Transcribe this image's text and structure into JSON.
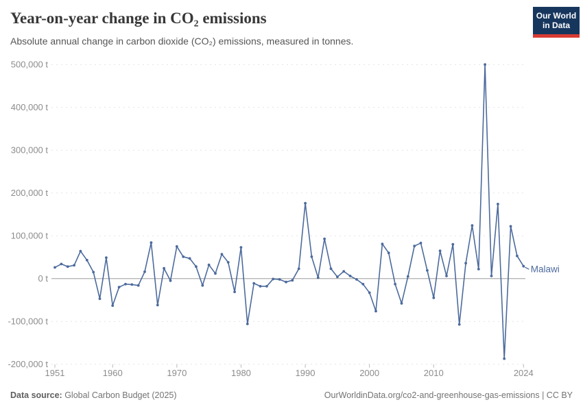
{
  "header": {
    "title": "Year-on-year change in CO₂ emissions",
    "subtitle": "Absolute annual change in carbon dioxide (CO₂) emissions, measured in tonnes."
  },
  "logo": {
    "line1": "Our World",
    "line2": "in Data"
  },
  "chart_data": {
    "type": "line",
    "title": "Year-on-year change in CO₂ emissions",
    "xlabel": "",
    "ylabel": "",
    "unit": "t",
    "grid": true,
    "legend_position": "end-of-line",
    "xlim": [
      1951,
      2024
    ],
    "ylim": [
      -200000,
      500000
    ],
    "x_ticks": [
      1951,
      1960,
      1970,
      1980,
      1990,
      2000,
      2010,
      2024
    ],
    "y_ticks": [
      500000,
      400000,
      300000,
      200000,
      100000,
      0,
      -100000,
      -200000
    ],
    "y_tick_labels": [
      "500,000 t",
      "400,000 t",
      "300,000 t",
      "200,000 t",
      "100,000 t",
      "0 t",
      "-100,000 t",
      "-200,000 t"
    ],
    "series": [
      {
        "name": "Malawi",
        "color": "#4C6A9C",
        "years": [
          1951,
          1952,
          1953,
          1954,
          1955,
          1956,
          1957,
          1958,
          1959,
          1960,
          1961,
          1962,
          1963,
          1964,
          1965,
          1966,
          1967,
          1968,
          1969,
          1970,
          1971,
          1972,
          1973,
          1974,
          1975,
          1976,
          1977,
          1978,
          1979,
          1980,
          1981,
          1982,
          1983,
          1984,
          1985,
          1986,
          1987,
          1988,
          1989,
          1990,
          1991,
          1992,
          1993,
          1994,
          1995,
          1996,
          1997,
          1998,
          1999,
          2000,
          2001,
          2002,
          2003,
          2004,
          2005,
          2006,
          2007,
          2008,
          2009,
          2010,
          2011,
          2012,
          2013,
          2014,
          2015,
          2016,
          2017,
          2018,
          2019,
          2020,
          2021,
          2022,
          2023,
          2024
        ],
        "values": [
          26000,
          34000,
          28000,
          31000,
          64000,
          43000,
          15000,
          -47000,
          49000,
          -63000,
          -20000,
          -13000,
          -14000,
          -16000,
          16000,
          84000,
          -62000,
          24000,
          -5000,
          75000,
          51000,
          47000,
          28000,
          -16000,
          32000,
          12000,
          57000,
          38000,
          -31000,
          73000,
          -106000,
          -11000,
          -18000,
          -18000,
          -1000,
          -2000,
          -8000,
          -4000,
          23000,
          176000,
          51000,
          2000,
          93000,
          23000,
          4000,
          17000,
          6000,
          -2000,
          -13000,
          -33000,
          -76000,
          81000,
          60000,
          -13000,
          -58000,
          5000,
          76000,
          83000,
          19000,
          -45000,
          65000,
          6000,
          80000,
          -107000,
          36000,
          124000,
          22000,
          500000,
          6000,
          174000,
          -187000,
          122000,
          53000,
          29000
        ]
      }
    ]
  },
  "footer": {
    "source_label": "Data source:",
    "source_text": " Global Carbon Budget (2025)",
    "right_text": "OurWorldinData.org/co2-and-greenhouse-gas-emissions | CC BY"
  },
  "colors": {
    "line": "#4C6A9C",
    "grid": "#E3E3E3",
    "zero_line": "#9B9B9B",
    "tick": "#B9B9B9",
    "axis_text": "#8C8C8C",
    "logo_bg": "#17365D",
    "logo_red": "#D93B33"
  }
}
